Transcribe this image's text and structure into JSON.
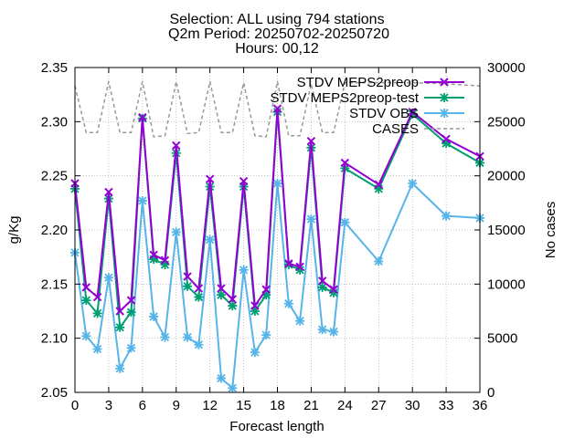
{
  "chart_data": {
    "type": "line",
    "title_lines": [
      "Selection: ALL using   794 stations",
      "Q2m   Period: 20250702-20250720",
      "Hours: 00,12"
    ],
    "xlabel": "Forecast length",
    "ylabel": "g/Kg",
    "y2label": "No cases",
    "xlim": [
      0,
      36
    ],
    "ylim": [
      2.05,
      2.35
    ],
    "y2lim": [
      0,
      30000
    ],
    "xticks": [
      0,
      3,
      6,
      9,
      12,
      15,
      18,
      21,
      24,
      27,
      30,
      33,
      36
    ],
    "yticks": [
      2.05,
      2.1,
      2.15,
      2.2,
      2.25,
      2.3,
      2.35
    ],
    "y2ticks": [
      0,
      5000,
      10000,
      15000,
      20000,
      25000,
      30000
    ],
    "legend_position": "top-right",
    "x": [
      0,
      1,
      2,
      3,
      4,
      5,
      6,
      7,
      8,
      9,
      10,
      11,
      12,
      13,
      14,
      15,
      16,
      17,
      18,
      19,
      20,
      21,
      22,
      23,
      24,
      27,
      30,
      33,
      36
    ],
    "series": [
      {
        "name": "STDV MEPS2preop",
        "color": "#9400d3",
        "axis": "y",
        "values": [
          2.243,
          2.147,
          2.138,
          2.235,
          2.125,
          2.135,
          2.304,
          2.177,
          2.172,
          2.278,
          2.157,
          2.146,
          2.247,
          2.146,
          2.136,
          2.245,
          2.13,
          2.145,
          2.312,
          2.169,
          2.166,
          2.282,
          2.153,
          2.145,
          2.262,
          2.242,
          2.309,
          2.284,
          2.268
        ]
      },
      {
        "name": "STDV MEPS2preop-test",
        "color": "#009e73",
        "axis": "y",
        "values": [
          2.238,
          2.135,
          2.123,
          2.229,
          2.11,
          2.124,
          2.303,
          2.173,
          2.168,
          2.271,
          2.148,
          2.138,
          2.24,
          2.14,
          2.13,
          2.24,
          2.125,
          2.14,
          2.309,
          2.168,
          2.163,
          2.276,
          2.147,
          2.142,
          2.257,
          2.238,
          2.307,
          2.28,
          2.262
        ]
      },
      {
        "name": "STDV OBS",
        "color": "#56b4e9",
        "axis": "y",
        "values": [
          2.179,
          2.102,
          2.09,
          2.156,
          2.072,
          2.091,
          2.227,
          2.12,
          2.101,
          2.198,
          2.101,
          2.094,
          2.191,
          2.063,
          2.054,
          2.163,
          2.087,
          2.103,
          2.243,
          2.132,
          2.116,
          2.21,
          2.108,
          2.106,
          2.207,
          2.171,
          2.243,
          2.213,
          2.211
        ]
      },
      {
        "name": "CASES",
        "color": "#999999",
        "axis": "y2",
        "dashed": true,
        "values": [
          28300,
          24000,
          24000,
          28700,
          24000,
          24000,
          28700,
          23600,
          23700,
          28700,
          23900,
          24000,
          28700,
          24000,
          24000,
          28600,
          23700,
          23600,
          28700,
          23700,
          23700,
          28500,
          24000,
          24000,
          28600,
          28600,
          28600,
          28500,
          28300
        ]
      }
    ]
  }
}
